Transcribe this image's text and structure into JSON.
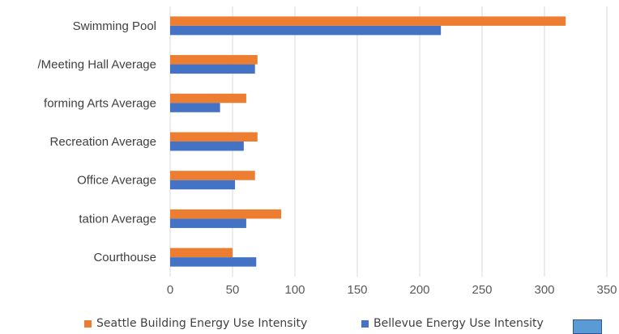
{
  "chart_data": {
    "type": "bar",
    "orientation": "horizontal",
    "categories": [
      "Swimming Pool",
      "/Meeting Hall Average",
      "forming Arts Average",
      "Recreation Average",
      "Office Average",
      "tation Average",
      "Courthouse"
    ],
    "series": [
      {
        "name": "Seattle Building Energy Use Intensity",
        "color": "#ed7d31",
        "values": [
          317,
          70,
          61,
          70,
          68,
          89,
          50
        ]
      },
      {
        "name": "Bellevue Energy Use Intensity",
        "color": "#4472c4",
        "values": [
          217,
          68,
          40,
          59,
          52,
          61,
          69
        ]
      }
    ],
    "xlim": [
      0,
      350
    ],
    "xticks": [
      "0",
      "50",
      "100",
      "150",
      "200",
      "250",
      "300",
      "350"
    ],
    "grid": true,
    "legend_position": "bottom",
    "title": "",
    "xlabel": "",
    "ylabel": ""
  },
  "legend": {
    "items": [
      {
        "label": "Seattle Building Energy Use Intensity",
        "color": "#ed7d31"
      },
      {
        "label": "Bellevue Energy Use Intensity",
        "color": "#4472c4"
      }
    ]
  }
}
